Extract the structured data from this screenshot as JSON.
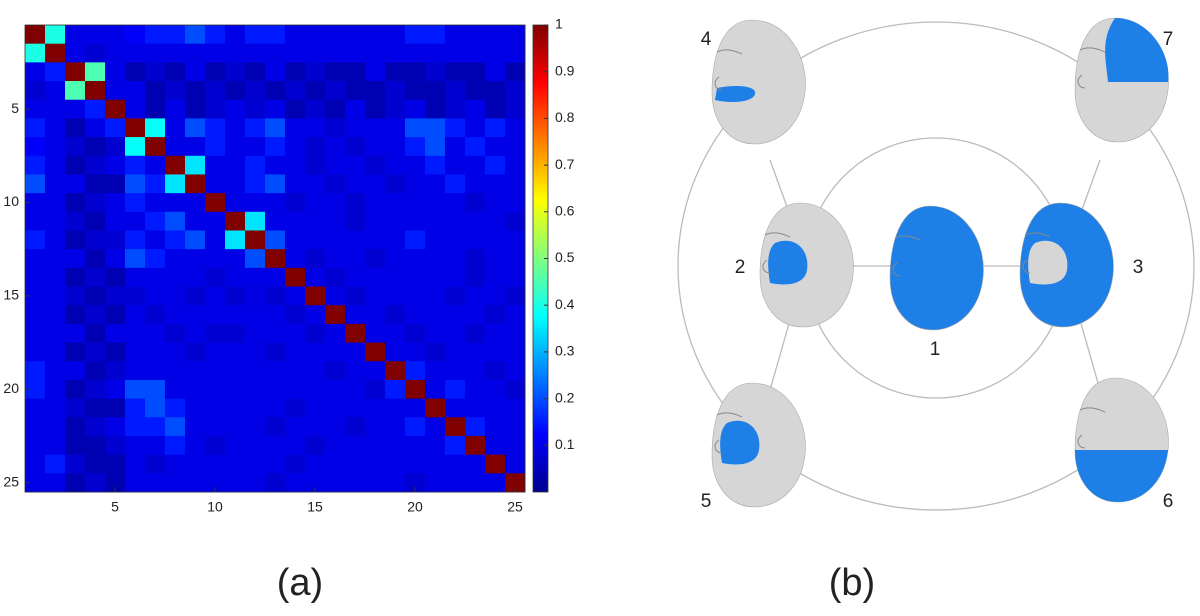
{
  "chart_data": {
    "type": "heatmap",
    "colormap": "jet",
    "z": [
      [
        1,
        0.4,
        0.1,
        0.1,
        0.1,
        0.12,
        0.15,
        0.15,
        0.2,
        0.15,
        0.1,
        0.15,
        0.15,
        0.1,
        0.1,
        0.1,
        0.1,
        0.1,
        0.1,
        0.15,
        0.15,
        0.1,
        0.1,
        0.1,
        0.1
      ],
      [
        0.4,
        1,
        0.1,
        0.08,
        0.1,
        0.1,
        0.1,
        0.1,
        0.1,
        0.1,
        0.1,
        0.1,
        0.1,
        0.1,
        0.1,
        0.1,
        0.1,
        0.1,
        0.1,
        0.1,
        0.1,
        0.1,
        0.1,
        0.1,
        0.1
      ],
      [
        0.1,
        0.15,
        1,
        0.45,
        0.1,
        0.05,
        0.08,
        0.05,
        0.1,
        0.05,
        0.08,
        0.05,
        0.1,
        0.05,
        0.08,
        0.05,
        0.05,
        0.1,
        0.05,
        0.05,
        0.08,
        0.05,
        0.05,
        0.1,
        0.05
      ],
      [
        0.08,
        0.1,
        0.45,
        1,
        0.1,
        0.1,
        0.05,
        0.08,
        0.05,
        0.08,
        0.05,
        0.08,
        0.05,
        0.08,
        0.05,
        0.08,
        0.05,
        0.05,
        0.08,
        0.05,
        0.05,
        0.08,
        0.05,
        0.05,
        0.08
      ],
      [
        0.1,
        0.1,
        0.1,
        0.15,
        1,
        0.1,
        0.05,
        0.1,
        0.05,
        0.08,
        0.1,
        0.08,
        0.1,
        0.05,
        0.08,
        0.05,
        0.1,
        0.05,
        0.08,
        0.1,
        0.05,
        0.08,
        0.1,
        0.05,
        0.08
      ],
      [
        0.15,
        0.1,
        0.05,
        0.1,
        0.15,
        1,
        0.38,
        0.1,
        0.2,
        0.15,
        0.1,
        0.15,
        0.2,
        0.1,
        0.1,
        0.08,
        0.1,
        0.1,
        0.1,
        0.2,
        0.2,
        0.15,
        0.1,
        0.15,
        0.1
      ],
      [
        0.12,
        0.1,
        0.08,
        0.05,
        0.08,
        0.38,
        1,
        0.1,
        0.1,
        0.15,
        0.1,
        0.1,
        0.15,
        0.1,
        0.08,
        0.1,
        0.08,
        0.1,
        0.1,
        0.15,
        0.2,
        0.1,
        0.15,
        0.1,
        0.1
      ],
      [
        0.15,
        0.1,
        0.05,
        0.08,
        0.1,
        0.15,
        0.1,
        1,
        0.35,
        0.1,
        0.1,
        0.15,
        0.1,
        0.1,
        0.08,
        0.1,
        0.1,
        0.08,
        0.1,
        0.1,
        0.15,
        0.1,
        0.1,
        0.15,
        0.1
      ],
      [
        0.2,
        0.1,
        0.1,
        0.05,
        0.05,
        0.2,
        0.15,
        0.35,
        1,
        0.1,
        0.1,
        0.15,
        0.2,
        0.1,
        0.1,
        0.08,
        0.1,
        0.1,
        0.08,
        0.1,
        0.1,
        0.15,
        0.1,
        0.1,
        0.1
      ],
      [
        0.1,
        0.1,
        0.05,
        0.08,
        0.1,
        0.15,
        0.1,
        0.1,
        0.1,
        1,
        0.1,
        0.1,
        0.1,
        0.08,
        0.1,
        0.1,
        0.08,
        0.1,
        0.1,
        0.1,
        0.1,
        0.1,
        0.08,
        0.1,
        0.1
      ],
      [
        0.1,
        0.1,
        0.08,
        0.05,
        0.1,
        0.1,
        0.15,
        0.2,
        0.1,
        0.1,
        1,
        0.35,
        0.1,
        0.1,
        0.1,
        0.1,
        0.08,
        0.1,
        0.1,
        0.1,
        0.1,
        0.1,
        0.1,
        0.1,
        0.08
      ],
      [
        0.15,
        0.1,
        0.05,
        0.08,
        0.08,
        0.15,
        0.1,
        0.15,
        0.2,
        0.1,
        0.35,
        1,
        0.2,
        0.1,
        0.1,
        0.1,
        0.1,
        0.1,
        0.1,
        0.15,
        0.1,
        0.1,
        0.1,
        0.1,
        0.1
      ],
      [
        0.1,
        0.1,
        0.1,
        0.05,
        0.1,
        0.2,
        0.15,
        0.1,
        0.1,
        0.1,
        0.1,
        0.2,
        1,
        0.1,
        0.08,
        0.1,
        0.1,
        0.08,
        0.1,
        0.1,
        0.1,
        0.1,
        0.08,
        0.1,
        0.1
      ],
      [
        0.1,
        0.1,
        0.05,
        0.08,
        0.05,
        0.1,
        0.1,
        0.1,
        0.1,
        0.08,
        0.1,
        0.1,
        0.1,
        1,
        0.1,
        0.08,
        0.1,
        0.1,
        0.1,
        0.1,
        0.1,
        0.1,
        0.08,
        0.1,
        0.1
      ],
      [
        0.1,
        0.1,
        0.08,
        0.05,
        0.08,
        0.08,
        0.1,
        0.1,
        0.08,
        0.1,
        0.08,
        0.1,
        0.08,
        0.1,
        1,
        0.1,
        0.08,
        0.1,
        0.1,
        0.1,
        0.1,
        0.08,
        0.1,
        0.1,
        0.08
      ],
      [
        0.1,
        0.1,
        0.05,
        0.08,
        0.05,
        0.1,
        0.08,
        0.1,
        0.1,
        0.1,
        0.1,
        0.1,
        0.1,
        0.08,
        0.1,
        1,
        0.1,
        0.1,
        0.08,
        0.1,
        0.1,
        0.1,
        0.1,
        0.08,
        0.1
      ],
      [
        0.1,
        0.1,
        0.1,
        0.05,
        0.1,
        0.1,
        0.1,
        0.08,
        0.1,
        0.08,
        0.08,
        0.1,
        0.1,
        0.1,
        0.08,
        0.1,
        1,
        0.1,
        0.1,
        0.08,
        0.1,
        0.1,
        0.08,
        0.1,
        0.1
      ],
      [
        0.1,
        0.1,
        0.05,
        0.08,
        0.05,
        0.1,
        0.1,
        0.1,
        0.08,
        0.1,
        0.1,
        0.1,
        0.08,
        0.1,
        0.1,
        0.1,
        0.1,
        1,
        0.1,
        0.1,
        0.08,
        0.1,
        0.1,
        0.1,
        0.1
      ],
      [
        0.15,
        0.1,
        0.1,
        0.05,
        0.08,
        0.1,
        0.1,
        0.1,
        0.1,
        0.1,
        0.1,
        0.1,
        0.1,
        0.1,
        0.1,
        0.08,
        0.1,
        0.1,
        1,
        0.15,
        0.1,
        0.1,
        0.1,
        0.08,
        0.1
      ],
      [
        0.15,
        0.1,
        0.05,
        0.08,
        0.1,
        0.2,
        0.2,
        0.1,
        0.1,
        0.1,
        0.1,
        0.1,
        0.1,
        0.1,
        0.1,
        0.1,
        0.1,
        0.08,
        0.15,
        1,
        0.1,
        0.15,
        0.1,
        0.1,
        0.08
      ],
      [
        0.1,
        0.1,
        0.08,
        0.05,
        0.05,
        0.15,
        0.2,
        0.15,
        0.1,
        0.1,
        0.1,
        0.1,
        0.1,
        0.08,
        0.1,
        0.1,
        0.1,
        0.1,
        0.1,
        0.1,
        1,
        0.1,
        0.1,
        0.1,
        0.1
      ],
      [
        0.1,
        0.1,
        0.05,
        0.08,
        0.1,
        0.15,
        0.15,
        0.2,
        0.1,
        0.1,
        0.1,
        0.1,
        0.08,
        0.1,
        0.1,
        0.1,
        0.08,
        0.1,
        0.1,
        0.15,
        0.1,
        1,
        0.15,
        0.1,
        0.1
      ],
      [
        0.1,
        0.1,
        0.05,
        0.05,
        0.08,
        0.1,
        0.1,
        0.15,
        0.1,
        0.08,
        0.1,
        0.1,
        0.1,
        0.1,
        0.08,
        0.1,
        0.1,
        0.1,
        0.1,
        0.1,
        0.1,
        0.15,
        1,
        0.1,
        0.1
      ],
      [
        0.1,
        0.15,
        0.08,
        0.05,
        0.05,
        0.1,
        0.08,
        0.1,
        0.1,
        0.1,
        0.1,
        0.1,
        0.1,
        0.08,
        0.1,
        0.1,
        0.1,
        0.1,
        0.1,
        0.1,
        0.1,
        0.1,
        0.1,
        1,
        0.1
      ],
      [
        0.1,
        0.1,
        0.05,
        0.08,
        0.05,
        0.1,
        0.1,
        0.1,
        0.1,
        0.1,
        0.1,
        0.1,
        0.08,
        0.1,
        0.1,
        0.1,
        0.1,
        0.1,
        0.1,
        0.08,
        0.1,
        0.1,
        0.1,
        0.1,
        1
      ]
    ],
    "xlim": [
      0.5,
      25.5
    ],
    "xticks": [
      5,
      10,
      15,
      20,
      25
    ],
    "ylim": [
      25.5,
      0.5
    ],
    "yticks": [
      5,
      10,
      15,
      20,
      25
    ],
    "clim": [
      0,
      1
    ],
    "cticks": [
      0.1,
      0.2,
      0.3,
      0.4,
      0.5,
      0.6,
      0.7,
      0.8,
      0.9,
      1
    ]
  },
  "panel_labels": [
    "(a)",
    "(b)"
  ],
  "diagram": {
    "nodes": [
      {
        "label": "1"
      },
      {
        "label": "2"
      },
      {
        "label": "3"
      },
      {
        "label": "4"
      },
      {
        "label": "5"
      },
      {
        "label": "6"
      },
      {
        "label": "7"
      }
    ]
  }
}
